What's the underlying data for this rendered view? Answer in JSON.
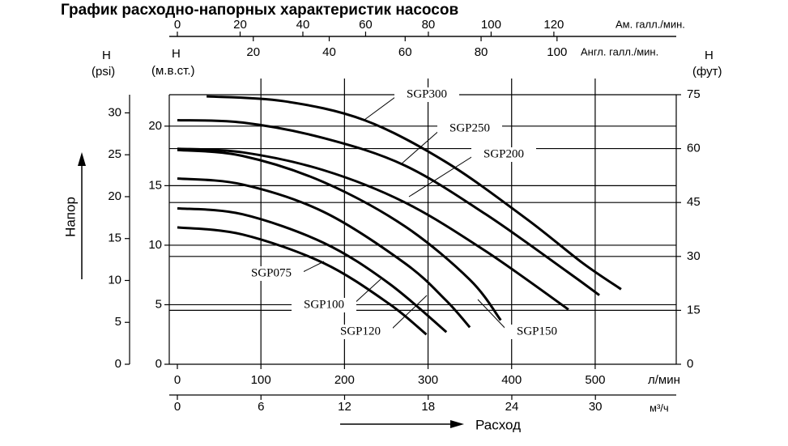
{
  "chart_data": {
    "type": "line",
    "title": "График расходно-напорных характеристик насосов",
    "ylabel": "Напор",
    "xlabel": "Расход",
    "xlim": [
      0,
      597
    ],
    "xticks": [
      0,
      100,
      200,
      300,
      400,
      500
    ],
    "xunit": "л/мин",
    "ylim": [
      0,
      24
    ],
    "yticks": [
      0,
      5,
      10,
      15,
      20
    ],
    "ysymbol": "Н",
    "yunit": "(м.в.ст.)",
    "grid": true,
    "color": "#000000",
    "extra_axes": [
      {
        "side": "bottom",
        "lim": [
          0,
          35.8
        ],
        "ticks": [
          0,
          6,
          12,
          18,
          24,
          30
        ],
        "unit": "м³/ч"
      },
      {
        "side": "top",
        "lim": [
          0,
          159
        ],
        "ticks": [
          0,
          20,
          40,
          60,
          80,
          100,
          120
        ],
        "unit": "Ам. галл./мин."
      },
      {
        "side": "top",
        "lim": [
          0,
          131.4
        ],
        "ticks": [
          20,
          40,
          60,
          80,
          100
        ],
        "unit": "Англ. галл./мин."
      },
      {
        "side": "left",
        "lim": [
          0,
          34.1
        ],
        "ticks": [
          0,
          5,
          10,
          15,
          20,
          25,
          30
        ],
        "symbol": "Н",
        "unit": "(psi)"
      },
      {
        "side": "right",
        "lim": [
          0,
          79.5
        ],
        "ticks": [
          0,
          15,
          30,
          45,
          60,
          75
        ],
        "symbol": "Н",
        "unit": "(фут)"
      }
    ],
    "series": [
      {
        "name": "SGP300",
        "x": [
          35,
          127,
          224,
          321,
          418,
          485,
          531
        ],
        "values": [
          22.5,
          22.1,
          20.5,
          17.0,
          12.2,
          8.5,
          6.3
        ]
      },
      {
        "name": "SGP250",
        "x": [
          0,
          78,
          175,
          272,
          369,
          466,
          505
        ],
        "values": [
          20.5,
          20.3,
          19.0,
          16.7,
          12.6,
          7.8,
          5.8
        ]
      },
      {
        "name": "SGP200",
        "x": [
          0,
          78,
          175,
          272,
          369,
          468
        ],
        "values": [
          18.1,
          17.8,
          16.3,
          13.6,
          9.5,
          4.6
        ]
      },
      {
        "name": "SGP150",
        "x": [
          0,
          78,
          175,
          272,
          350,
          387
        ],
        "values": [
          18.0,
          17.5,
          15.3,
          11.6,
          7.1,
          3.7
        ]
      },
      {
        "name": "SGP120",
        "x": [
          0,
          78,
          175,
          272,
          321,
          350
        ],
        "values": [
          15.6,
          15.1,
          12.8,
          8.5,
          5.4,
          3.1
        ]
      },
      {
        "name": "SGP100",
        "x": [
          0,
          78,
          175,
          253,
          322
        ],
        "values": [
          13.1,
          12.6,
          10.2,
          6.8,
          2.7
        ]
      },
      {
        "name": "SGP075",
        "x": [
          0,
          78,
          175,
          253,
          298
        ],
        "values": [
          11.5,
          10.9,
          8.5,
          5.1,
          2.5
        ]
      }
    ]
  }
}
